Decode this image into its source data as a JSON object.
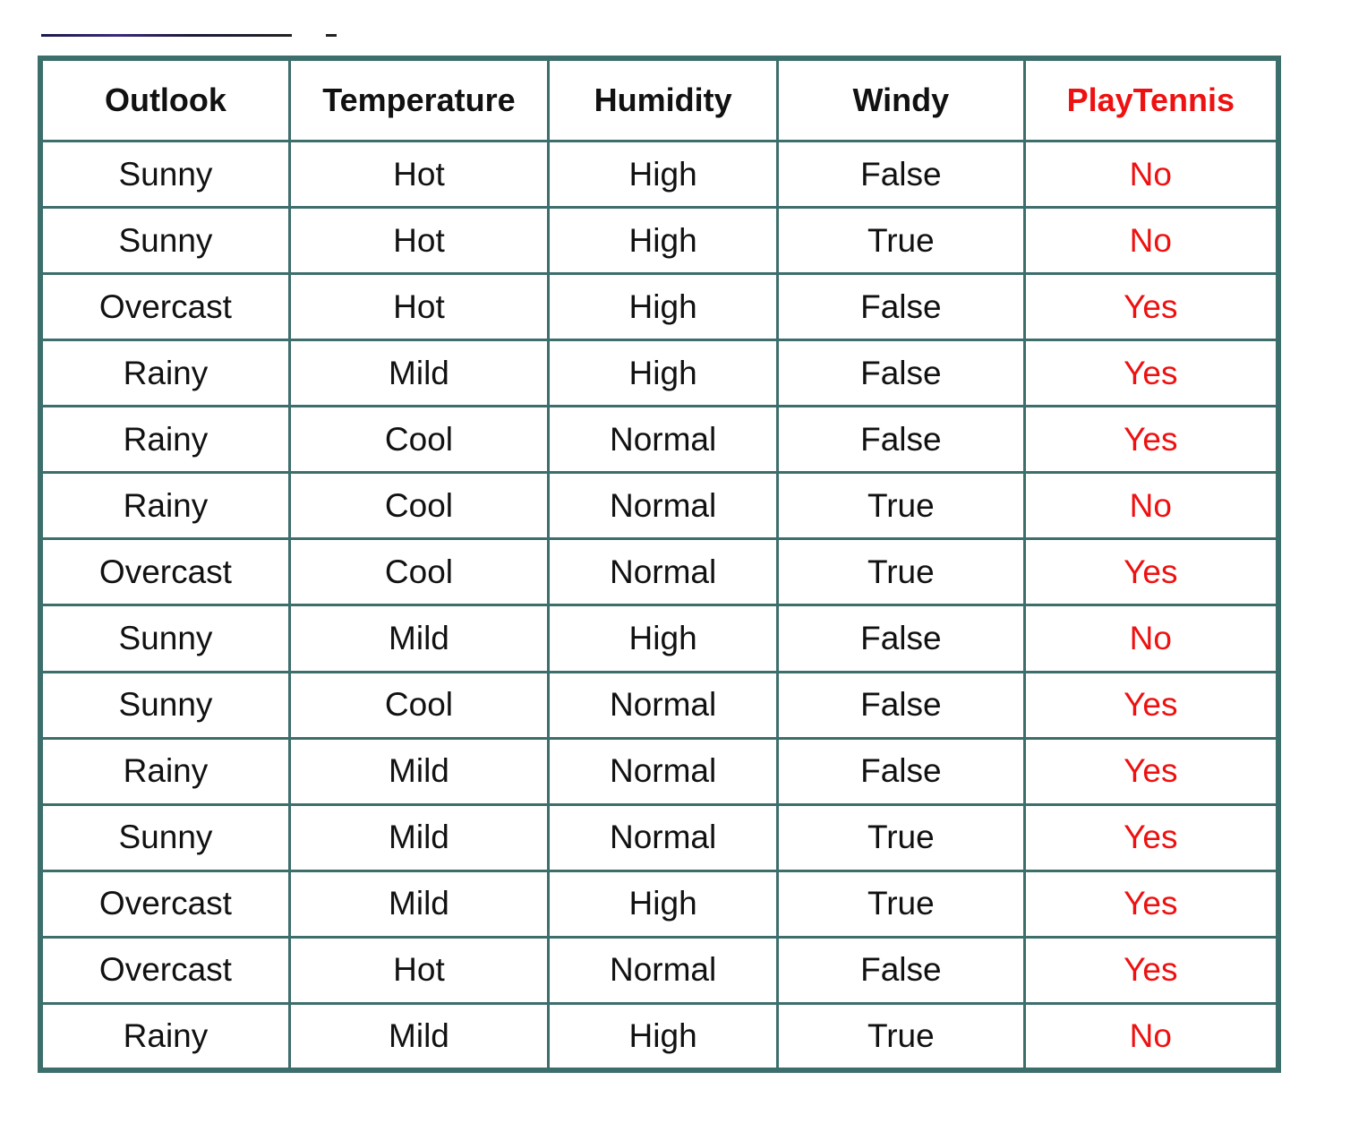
{
  "table": {
    "headers": [
      "Outlook",
      "Temperature",
      "Humidity",
      "Windy",
      "PlayTennis"
    ],
    "rows": [
      [
        "Sunny",
        "Hot",
        "High",
        "False",
        "No"
      ],
      [
        "Sunny",
        "Hot",
        "High",
        "True",
        "No"
      ],
      [
        "Overcast",
        "Hot",
        "High",
        "False",
        "Yes"
      ],
      [
        "Rainy",
        "Mild",
        "High",
        "False",
        "Yes"
      ],
      [
        "Rainy",
        "Cool",
        "Normal",
        "False",
        "Yes"
      ],
      [
        "Rainy",
        "Cool",
        "Normal",
        "True",
        "No"
      ],
      [
        "Overcast",
        "Cool",
        "Normal",
        "True",
        "Yes"
      ],
      [
        "Sunny",
        "Mild",
        "High",
        "False",
        "No"
      ],
      [
        "Sunny",
        "Cool",
        "Normal",
        "False",
        "Yes"
      ],
      [
        "Rainy",
        "Mild",
        "Normal",
        "False",
        "Yes"
      ],
      [
        "Sunny",
        "Mild",
        "Normal",
        "True",
        "Yes"
      ],
      [
        "Overcast",
        "Mild",
        "High",
        "True",
        "Yes"
      ],
      [
        "Overcast",
        "Hot",
        "Normal",
        "False",
        "Yes"
      ],
      [
        "Rainy",
        "Mild",
        "High",
        "True",
        "No"
      ]
    ]
  },
  "colors": {
    "border": "#3c6e6c",
    "target": "#ee1111",
    "text": "#111111"
  }
}
